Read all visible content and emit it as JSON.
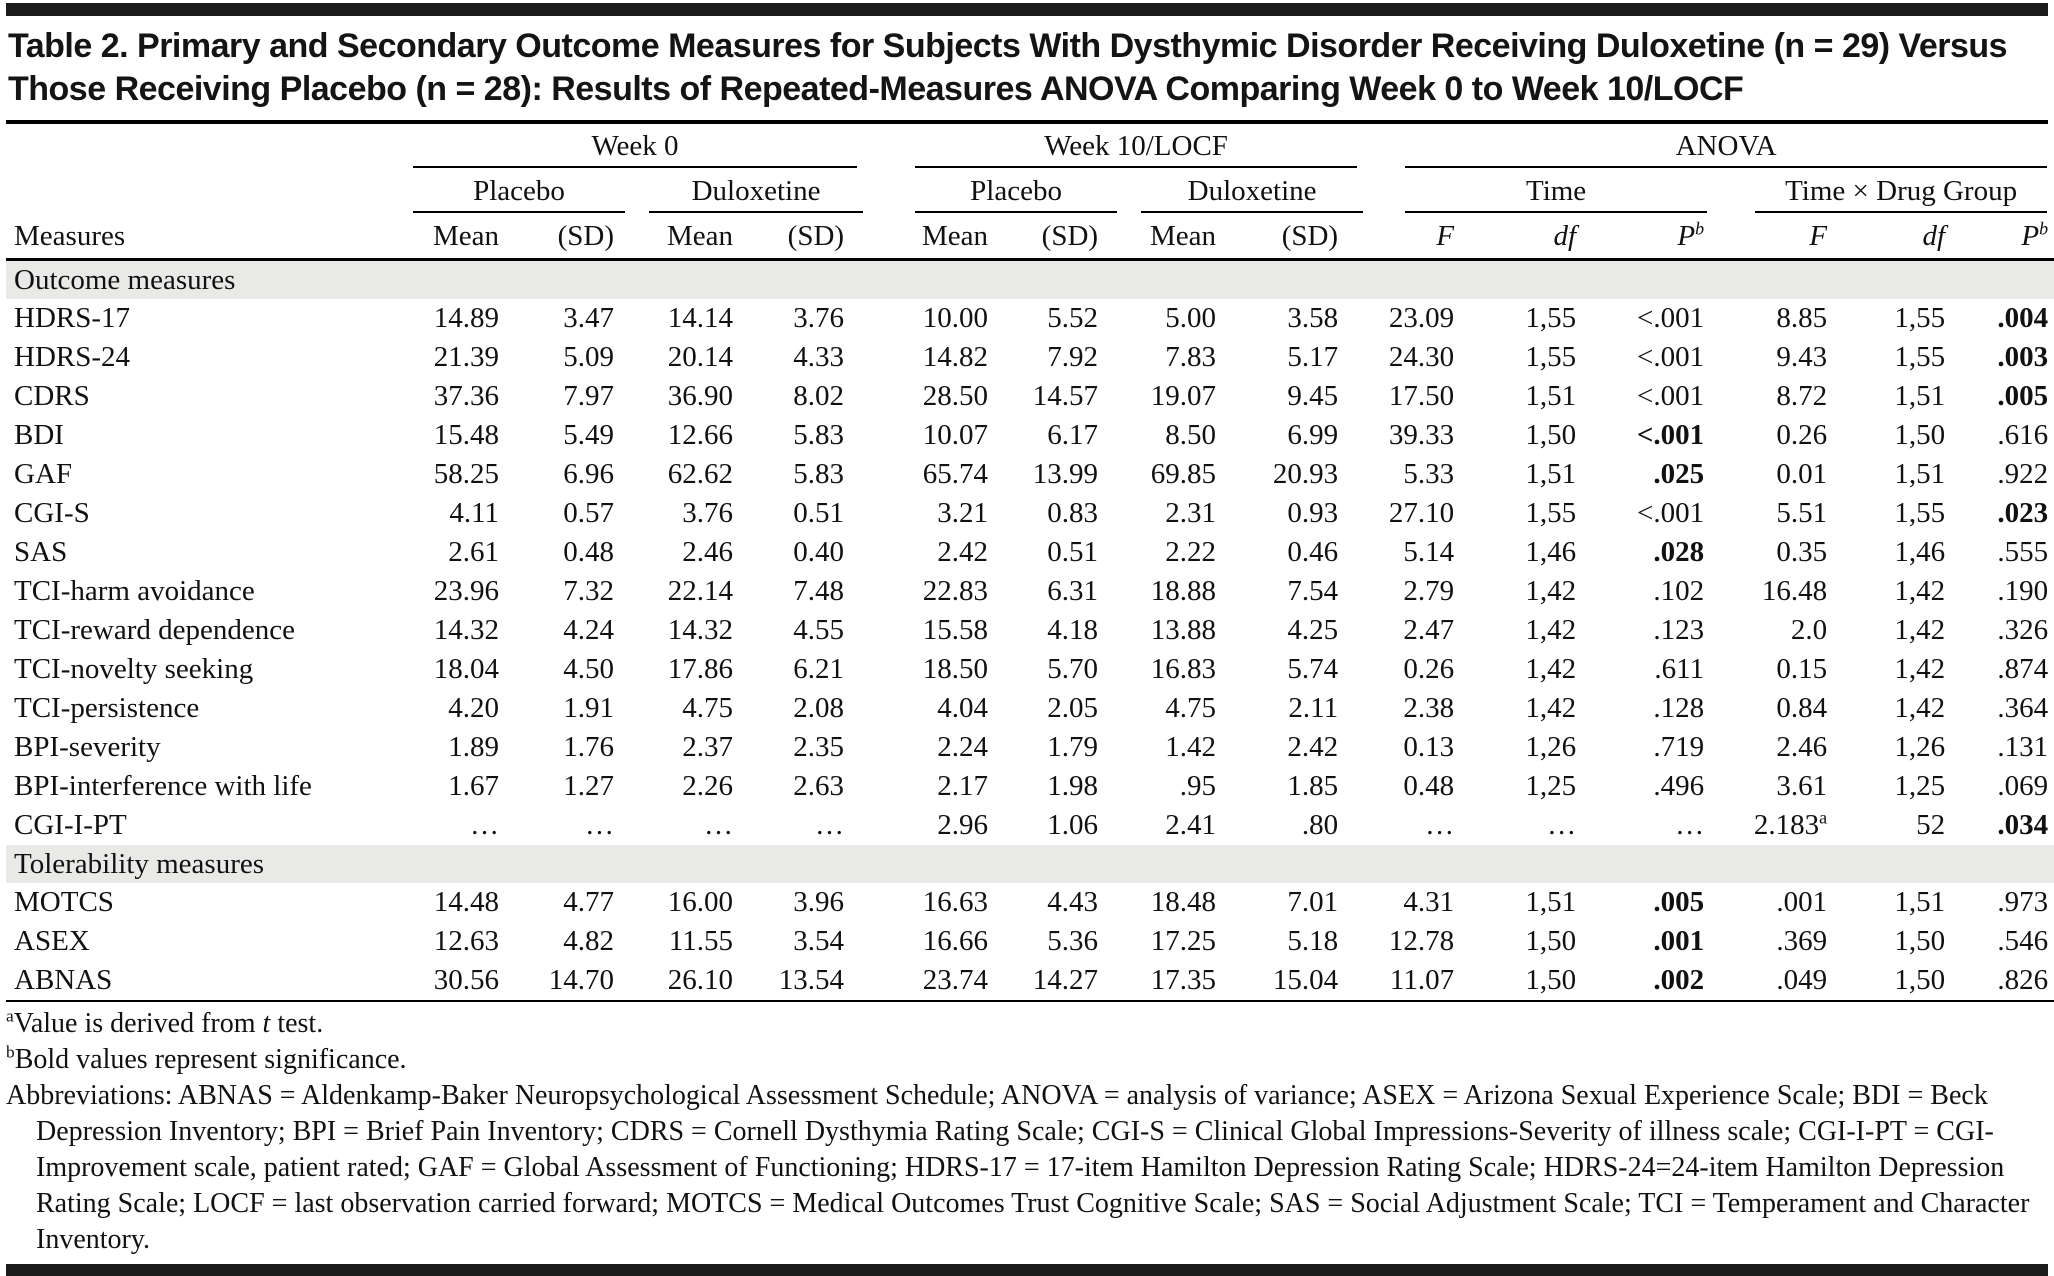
{
  "title": "Table 2. Primary and Secondary Outcome Measures for Subjects With Dysthymic Disorder Receiving Duloxetine (n = 29) Versus Those Receiving Placebo (n = 28): Results of Repeated-Measures ANOVA Comparing Week 0 to Week 10/LOCF",
  "table": {
    "header": {
      "measures_label": "Measures",
      "group_week0": "Week 0",
      "group_week10": "Week 10/LOCF",
      "group_anova": "ANOVA",
      "sub_placebo": "Placebo",
      "sub_duloxetine": "Duloxetine",
      "sub_time": "Time",
      "sub_timedrug": "Time × Drug Group",
      "mean": "Mean",
      "sd": "(SD)",
      "f": "F",
      "df": "df",
      "p": "P^b"
    },
    "sections": [
      {
        "label": "Outcome measures",
        "rows": [
          {
            "measure": "HDRS-17",
            "cells": [
              "14.89",
              "3.47",
              "14.14",
              "3.76",
              "10.00",
              "5.52",
              "5.00",
              "3.58",
              "23.09",
              "1,55",
              "<.001",
              "8.85",
              "1,55",
              ".004"
            ],
            "bold": [
              13
            ]
          },
          {
            "measure": "HDRS-24",
            "cells": [
              "21.39",
              "5.09",
              "20.14",
              "4.33",
              "14.82",
              "7.92",
              "7.83",
              "5.17",
              "24.30",
              "1,55",
              "<.001",
              "9.43",
              "1,55",
              ".003"
            ],
            "bold": [
              13
            ]
          },
          {
            "measure": "CDRS",
            "cells": [
              "37.36",
              "7.97",
              "36.90",
              "8.02",
              "28.50",
              "14.57",
              "19.07",
              "9.45",
              "17.50",
              "1,51",
              "<.001",
              "8.72",
              "1,51",
              ".005"
            ],
            "bold": [
              13
            ]
          },
          {
            "measure": "BDI",
            "cells": [
              "15.48",
              "5.49",
              "12.66",
              "5.83",
              "10.07",
              "6.17",
              "8.50",
              "6.99",
              "39.33",
              "1,50",
              "<.001",
              "0.26",
              "1,50",
              ".616"
            ],
            "bold": [
              10
            ]
          },
          {
            "measure": "GAF",
            "cells": [
              "58.25",
              "6.96",
              "62.62",
              "5.83",
              "65.74",
              "13.99",
              "69.85",
              "20.93",
              "5.33",
              "1,51",
              ".025",
              "0.01",
              "1,51",
              ".922"
            ],
            "bold": [
              10
            ]
          },
          {
            "measure": "CGI-S",
            "cells": [
              "4.11",
              "0.57",
              "3.76",
              "0.51",
              "3.21",
              "0.83",
              "2.31",
              "0.93",
              "27.10",
              "1,55",
              "<.001",
              "5.51",
              "1,55",
              ".023"
            ],
            "bold": [
              13
            ]
          },
          {
            "measure": "SAS",
            "cells": [
              "2.61",
              "0.48",
              "2.46",
              "0.40",
              "2.42",
              "0.51",
              "2.22",
              "0.46",
              "5.14",
              "1,46",
              ".028",
              "0.35",
              "1,46",
              ".555"
            ],
            "bold": [
              10
            ]
          },
          {
            "measure": "TCI-harm avoidance",
            "cells": [
              "23.96",
              "7.32",
              "22.14",
              "7.48",
              "22.83",
              "6.31",
              "18.88",
              "7.54",
              "2.79",
              "1,42",
              ".102",
              "16.48",
              "1,42",
              ".190"
            ],
            "bold": []
          },
          {
            "measure": "TCI-reward dependence",
            "cells": [
              "14.32",
              "4.24",
              "14.32",
              "4.55",
              "15.58",
              "4.18",
              "13.88",
              "4.25",
              "2.47",
              "1,42",
              ".123",
              "2.0",
              "1,42",
              ".326"
            ],
            "bold": []
          },
          {
            "measure": "TCI-novelty seeking",
            "cells": [
              "18.04",
              "4.50",
              "17.86",
              "6.21",
              "18.50",
              "5.70",
              "16.83",
              "5.74",
              "0.26",
              "1,42",
              ".611",
              "0.15",
              "1,42",
              ".874"
            ],
            "bold": []
          },
          {
            "measure": "TCI-persistence",
            "cells": [
              "4.20",
              "1.91",
              "4.75",
              "2.08",
              "4.04",
              "2.05",
              "4.75",
              "2.11",
              "2.38",
              "1,42",
              ".128",
              "0.84",
              "1,42",
              ".364"
            ],
            "bold": []
          },
          {
            "measure": "BPI-severity",
            "cells": [
              "1.89",
              "1.76",
              "2.37",
              "2.35",
              "2.24",
              "1.79",
              "1.42",
              "2.42",
              "0.13",
              "1,26",
              ".719",
              "2.46",
              "1,26",
              ".131"
            ],
            "bold": []
          },
          {
            "measure": "BPI-interference with life",
            "cells": [
              "1.67",
              "1.27",
              "2.26",
              "2.63",
              "2.17",
              "1.98",
              ".95",
              "1.85",
              "0.48",
              "1,25",
              ".496",
              "3.61",
              "1,25",
              ".069"
            ],
            "bold": []
          },
          {
            "measure": "CGI-I-PT",
            "cells": [
              "…",
              "…",
              "…",
              "…",
              "2.96",
              "1.06",
              "2.41",
              ".80",
              "…",
              "…",
              "…",
              "2.183^a",
              "52",
              ".034"
            ],
            "bold": [
              13
            ]
          }
        ]
      },
      {
        "label": "Tolerability measures",
        "rows": [
          {
            "measure": "MOTCS",
            "cells": [
              "14.48",
              "4.77",
              "16.00",
              "3.96",
              "16.63",
              "4.43",
              "18.48",
              "7.01",
              "4.31",
              "1,51",
              ".005",
              ".001",
              "1,51",
              ".973"
            ],
            "bold": [
              10
            ]
          },
          {
            "measure": "ASEX",
            "cells": [
              "12.63",
              "4.82",
              "11.55",
              "3.54",
              "16.66",
              "5.36",
              "17.25",
              "5.18",
              "12.78",
              "1,50",
              ".001",
              ".369",
              "1,50",
              ".546"
            ],
            "bold": [
              10
            ]
          },
          {
            "measure": "ABNAS",
            "cells": [
              "30.56",
              "14.70",
              "26.10",
              "13.54",
              "23.74",
              "14.27",
              "17.35",
              "15.04",
              "11.07",
              "1,50",
              ".002",
              ".049",
              "1,50",
              ".826"
            ],
            "bold": [
              10
            ]
          }
        ]
      }
    ]
  },
  "footnotes": {
    "a_prefix": "^aValue is derived from ",
    "a_italic": "t",
    "a_suffix": " test.",
    "b": "^bBold values represent significance.",
    "abbreviations": "Abbreviations: ABNAS = Aldenkamp-Baker Neuropsychological Assessment Schedule; ANOVA = analysis of variance; ASEX = Arizona Sexual Experience Scale; BDI = Beck Depression Inventory; BPI = Brief Pain Inventory; CDRS = Cornell Dysthymia Rating Scale; CGI-S = Clinical Global Impressions-Severity of illness scale; CGI-I-PT = CGI-Improvement scale, patient rated; GAF = Global Assessment of Functioning; HDRS-17 = 17-item Hamilton Depression Rating Scale; HDRS-24=24-item Hamilton Depression Rating Scale; LOCF = last observation carried forward; MOTCS = Medical Outcomes Trust Cognitive Scale; SAS = Social Adjustment Scale; TCI = Temperament and Character Inventory."
  },
  "colors": {
    "section_bg": "#e9e9e7",
    "rule": "#1b1b1b",
    "text": "#111111"
  }
}
